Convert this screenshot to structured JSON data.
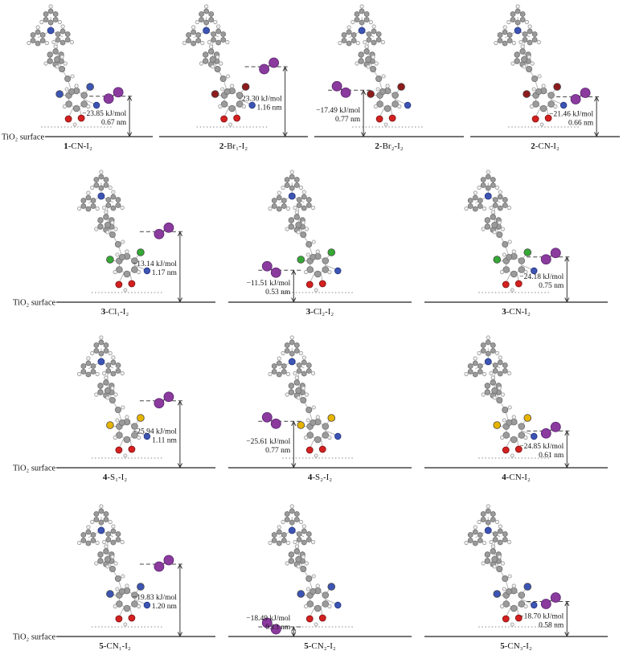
{
  "figure": {
    "description": "Adsorption geometries of I2 on dye-sensitized TiO2 surface with binding energies and distances"
  },
  "colors": {
    "carbon": "#9b9b9b",
    "hydrogen": "#f2f2f2",
    "nitrogen": "#3c55b4",
    "oxygen": "#d42020",
    "iodine": "#8b3a9e",
    "bromine": "#8e1b1b",
    "chlorine": "#35a835",
    "sulfur": "#e6b400"
  },
  "rows": [
    {
      "surface_label": "TiO₂ surface",
      "panels": [
        {
          "label_bold": "1",
          "label_rest": "-CN-I₂",
          "substituent": "CN",
          "energy": "−23.85 kJ/mol",
          "energy_kj_mol": -23.85,
          "distance": "0.67 nm",
          "distance_nm": 0.67
        },
        {
          "label_bold": "2",
          "label_rest": "-Br₁-I₂",
          "substituent": "Br",
          "energy": "−23.30 kJ/mol",
          "energy_kj_mol": -23.3,
          "distance": "1.16 nm",
          "distance_nm": 1.16
        },
        {
          "label_bold": "2",
          "label_rest": "-Br₂-I₂",
          "substituent": "Br",
          "energy": "−17.49 kJ/mol",
          "energy_kj_mol": -17.49,
          "distance": "0.77 nm",
          "distance_nm": 0.77
        },
        {
          "label_bold": "2",
          "label_rest": "-CN-I₂",
          "substituent": "Br",
          "energy": "−21.46 kJ/mol",
          "energy_kj_mol": -21.46,
          "distance": "0.66 nm",
          "distance_nm": 0.66
        }
      ]
    },
    {
      "surface_label": "TiO₂ surface",
      "panels": [
        {
          "label_bold": "3",
          "label_rest": "-Cl₁-I₂",
          "substituent": "Cl",
          "energy": "−13.14 kJ/mol",
          "energy_kj_mol": -13.14,
          "distance": "1.17 nm",
          "distance_nm": 1.17
        },
        {
          "label_bold": "3",
          "label_rest": "-Cl₂-I₂",
          "substituent": "Cl",
          "energy": "−11.51 kJ/mol",
          "energy_kj_mol": -11.51,
          "distance": "0.53 nm",
          "distance_nm": 0.53
        },
        {
          "label_bold": "3",
          "label_rest": "-CN-I₂",
          "substituent": "Cl",
          "energy": "−24.18 kJ/mol",
          "energy_kj_mol": -24.18,
          "distance": "0.75 nm",
          "distance_nm": 0.75
        }
      ]
    },
    {
      "surface_label": "TiO₂ surface",
      "panels": [
        {
          "label_bold": "4",
          "label_rest": "-S₁-I₂",
          "substituent": "S",
          "energy": "−25.94 kJ/mol",
          "energy_kj_mol": -25.94,
          "distance": "1.11 nm",
          "distance_nm": 1.11
        },
        {
          "label_bold": "4",
          "label_rest": "-S₂-I₂",
          "substituent": "S",
          "energy": "−25.61 kJ/mol",
          "energy_kj_mol": -25.61,
          "distance": "0.77 nm",
          "distance_nm": 0.77
        },
        {
          "label_bold": "4",
          "label_rest": "-CN-I₂",
          "substituent": "S",
          "energy": "−24.85 kJ/mol",
          "energy_kj_mol": -24.85,
          "distance": "0.61 nm",
          "distance_nm": 0.61
        }
      ]
    },
    {
      "surface_label": "TiO₂ surface",
      "panels": [
        {
          "label_bold": "5",
          "label_rest": "-CN₁-I₂",
          "substituent": "CN",
          "energy": "−19.83 kJ/mol",
          "energy_kj_mol": -19.83,
          "distance": "1.20 nm",
          "distance_nm": 1.2
        },
        {
          "label_bold": "5",
          "label_rest": "-CN₂-I₂",
          "substituent": "CN",
          "energy": "−18.49 kJ/mol",
          "energy_kj_mol": -18.49,
          "distance": "0.13 nm",
          "distance_nm": 0.13
        },
        {
          "label_bold": "5",
          "label_rest": "-CN₃-I₂",
          "substituent": "CN",
          "energy": "−18.70 kJ/mol",
          "energy_kj_mol": -18.7,
          "distance": "0.58 nm",
          "distance_nm": 0.58
        }
      ]
    }
  ]
}
